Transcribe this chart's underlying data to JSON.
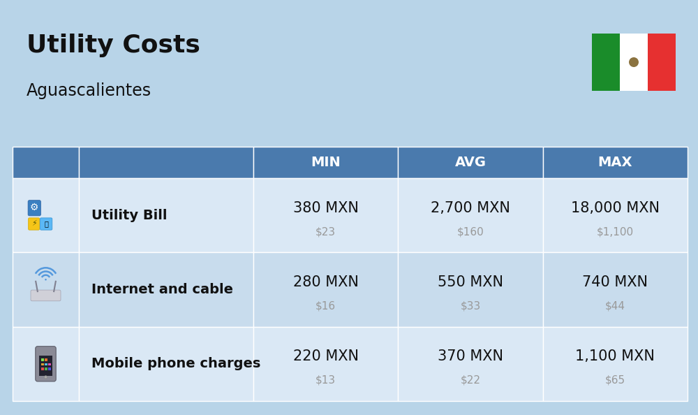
{
  "title": "Utility Costs",
  "subtitle": "Aguascalientes",
  "background_color": "#b8d4e8",
  "header_bg_color": "#4a7aad",
  "header_text_color": "#ffffff",
  "row_colors": [
    "#dae8f5",
    "#c8dced",
    "#dae8f5"
  ],
  "col_headers": [
    "MIN",
    "AVG",
    "MAX"
  ],
  "rows": [
    {
      "label": "Utility Bill",
      "min_mxn": "380 MXN",
      "min_usd": "$23",
      "avg_mxn": "2,700 MXN",
      "avg_usd": "$160",
      "max_mxn": "18,000 MXN",
      "max_usd": "$1,100"
    },
    {
      "label": "Internet and cable",
      "min_mxn": "280 MXN",
      "min_usd": "$16",
      "avg_mxn": "550 MXN",
      "avg_usd": "$33",
      "max_mxn": "740 MXN",
      "max_usd": "$44"
    },
    {
      "label": "Mobile phone charges",
      "min_mxn": "220 MXN",
      "min_usd": "$13",
      "avg_mxn": "370 MXN",
      "avg_usd": "$22",
      "max_mxn": "1,100 MXN",
      "max_usd": "$65"
    }
  ],
  "title_fontsize": 26,
  "subtitle_fontsize": 17,
  "header_fontsize": 14,
  "cell_fontsize_main": 15,
  "cell_fontsize_sub": 11,
  "label_fontsize": 14,
  "flag_green": "#1a8c2a",
  "flag_red": "#e63030",
  "flag_white": "#ffffff",
  "usd_color": "#999999",
  "text_color": "#111111"
}
